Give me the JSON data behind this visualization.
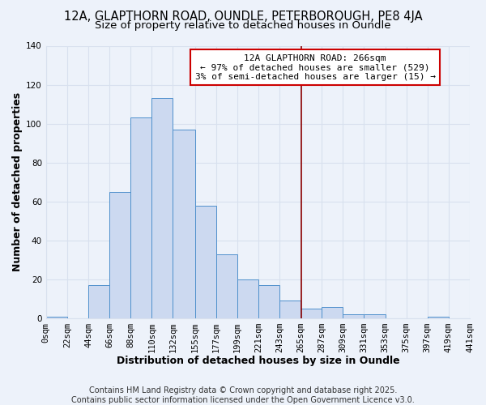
{
  "title_line1": "12A, GLAPTHORN ROAD, OUNDLE, PETERBOROUGH, PE8 4JA",
  "title_line2": "Size of property relative to detached houses in Oundle",
  "xlabel": "Distribution of detached houses by size in Oundle",
  "ylabel": "Number of detached properties",
  "bar_edges": [
    0,
    22,
    44,
    66,
    88,
    110,
    132,
    155,
    177,
    199,
    221,
    243,
    265,
    287,
    309,
    331,
    353,
    375,
    397,
    419,
    441
  ],
  "bar_heights": [
    1,
    0,
    17,
    65,
    103,
    113,
    97,
    58,
    33,
    20,
    17,
    9,
    5,
    6,
    2,
    2,
    0,
    0,
    1,
    0
  ],
  "bar_facecolor": "#ccd9f0",
  "bar_edgecolor": "#4f90cc",
  "vline_x": 266,
  "vline_color": "#8b0000",
  "annotation_title": "12A GLAPTHORN ROAD: 266sqm",
  "annotation_line2": "← 97% of detached houses are smaller (529)",
  "annotation_line3": "3% of semi-detached houses are larger (15) →",
  "annotation_box_edgecolor": "#cc0000",
  "annotation_box_facecolor": "#ffffff",
  "ylim": [
    0,
    140
  ],
  "yticks": [
    0,
    20,
    40,
    60,
    80,
    100,
    120,
    140
  ],
  "tick_labels": [
    "0sqm",
    "22sqm",
    "44sqm",
    "66sqm",
    "88sqm",
    "110sqm",
    "132sqm",
    "155sqm",
    "177sqm",
    "199sqm",
    "221sqm",
    "243sqm",
    "265sqm",
    "287sqm",
    "309sqm",
    "331sqm",
    "353sqm",
    "375sqm",
    "397sqm",
    "419sqm",
    "441sqm"
  ],
  "footer_line1": "Contains HM Land Registry data © Crown copyright and database right 2025.",
  "footer_line2": "Contains public sector information licensed under the Open Government Licence v3.0.",
  "background_color": "#edf2fa",
  "grid_color": "#d8e0ee",
  "title_fontsize": 10.5,
  "subtitle_fontsize": 9.5,
  "axis_label_fontsize": 9,
  "tick_fontsize": 7.5,
  "annotation_fontsize": 8,
  "footer_fontsize": 7
}
